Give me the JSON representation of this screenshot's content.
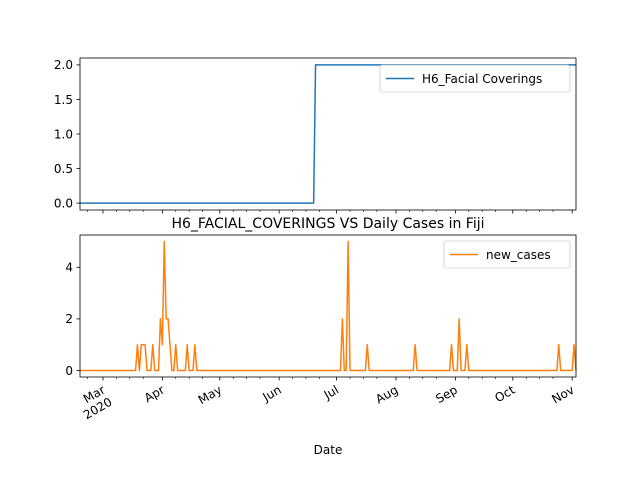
{
  "chart_data": [
    {
      "type": "line",
      "title": "",
      "xlabel": "",
      "ylabel": "",
      "x_axis": "date",
      "xlim": [
        "2020-02-18",
        "2020-11-03"
      ],
      "ylim": [
        -0.1,
        2.1
      ],
      "yticks": [
        0.0,
        0.5,
        1.0,
        1.5,
        2.0
      ],
      "ytick_labels": [
        "0.0",
        "0.5",
        "1.0",
        "1.5",
        "2.0"
      ],
      "x_tick_labels_visible": false,
      "legend": "upper-right",
      "series": [
        {
          "name": "H6_Facial Coverings",
          "color": "#1f77b4",
          "points": [
            [
              "2020-02-18",
              0
            ],
            [
              "2020-06-19",
              0
            ],
            [
              "2020-06-20",
              2
            ],
            [
              "2020-11-03",
              2
            ]
          ]
        }
      ]
    },
    {
      "type": "line",
      "title": "H6_FACIAL_COVERINGS VS Daily Cases in Fiji",
      "xlabel": "Date",
      "ylabel": "",
      "x_axis": "date",
      "xlim": [
        "2020-02-18",
        "2020-11-03"
      ],
      "ylim": [
        -0.25,
        5.25
      ],
      "yticks": [
        0,
        2,
        4
      ],
      "ytick_labels": [
        "0",
        "2",
        "4"
      ],
      "xticks": [
        {
          "date": "2020-03-01",
          "label": "Mar",
          "sub": "2020"
        },
        {
          "date": "2020-04-01",
          "label": "Apr"
        },
        {
          "date": "2020-05-01",
          "label": "May"
        },
        {
          "date": "2020-06-01",
          "label": "Jun"
        },
        {
          "date": "2020-07-01",
          "label": "Jul"
        },
        {
          "date": "2020-08-01",
          "label": "Aug"
        },
        {
          "date": "2020-09-01",
          "label": "Sep"
        },
        {
          "date": "2020-10-01",
          "label": "Oct"
        },
        {
          "date": "2020-11-01",
          "label": "Nov"
        }
      ],
      "legend": "upper-right",
      "series": [
        {
          "name": "new_cases",
          "color": "#ff7f0e",
          "nonzero": [
            [
              "2020-03-19",
              1
            ],
            [
              "2020-03-21",
              1
            ],
            [
              "2020-03-22",
              1
            ],
            [
              "2020-03-23",
              1
            ],
            [
              "2020-03-27",
              1
            ],
            [
              "2020-03-31",
              2
            ],
            [
              "2020-04-01",
              1
            ],
            [
              "2020-04-02",
              5
            ],
            [
              "2020-04-03",
              2
            ],
            [
              "2020-04-04",
              2
            ],
            [
              "2020-04-05",
              1
            ],
            [
              "2020-04-08",
              1
            ],
            [
              "2020-04-14",
              1
            ],
            [
              "2020-04-18",
              1
            ],
            [
              "2020-07-04",
              2
            ],
            [
              "2020-07-07",
              5
            ],
            [
              "2020-07-17",
              1
            ],
            [
              "2020-08-11",
              1
            ],
            [
              "2020-08-30",
              1
            ],
            [
              "2020-09-03",
              2
            ],
            [
              "2020-09-07",
              1
            ],
            [
              "2020-10-25",
              1
            ],
            [
              "2020-11-02",
              1
            ]
          ]
        }
      ]
    }
  ]
}
